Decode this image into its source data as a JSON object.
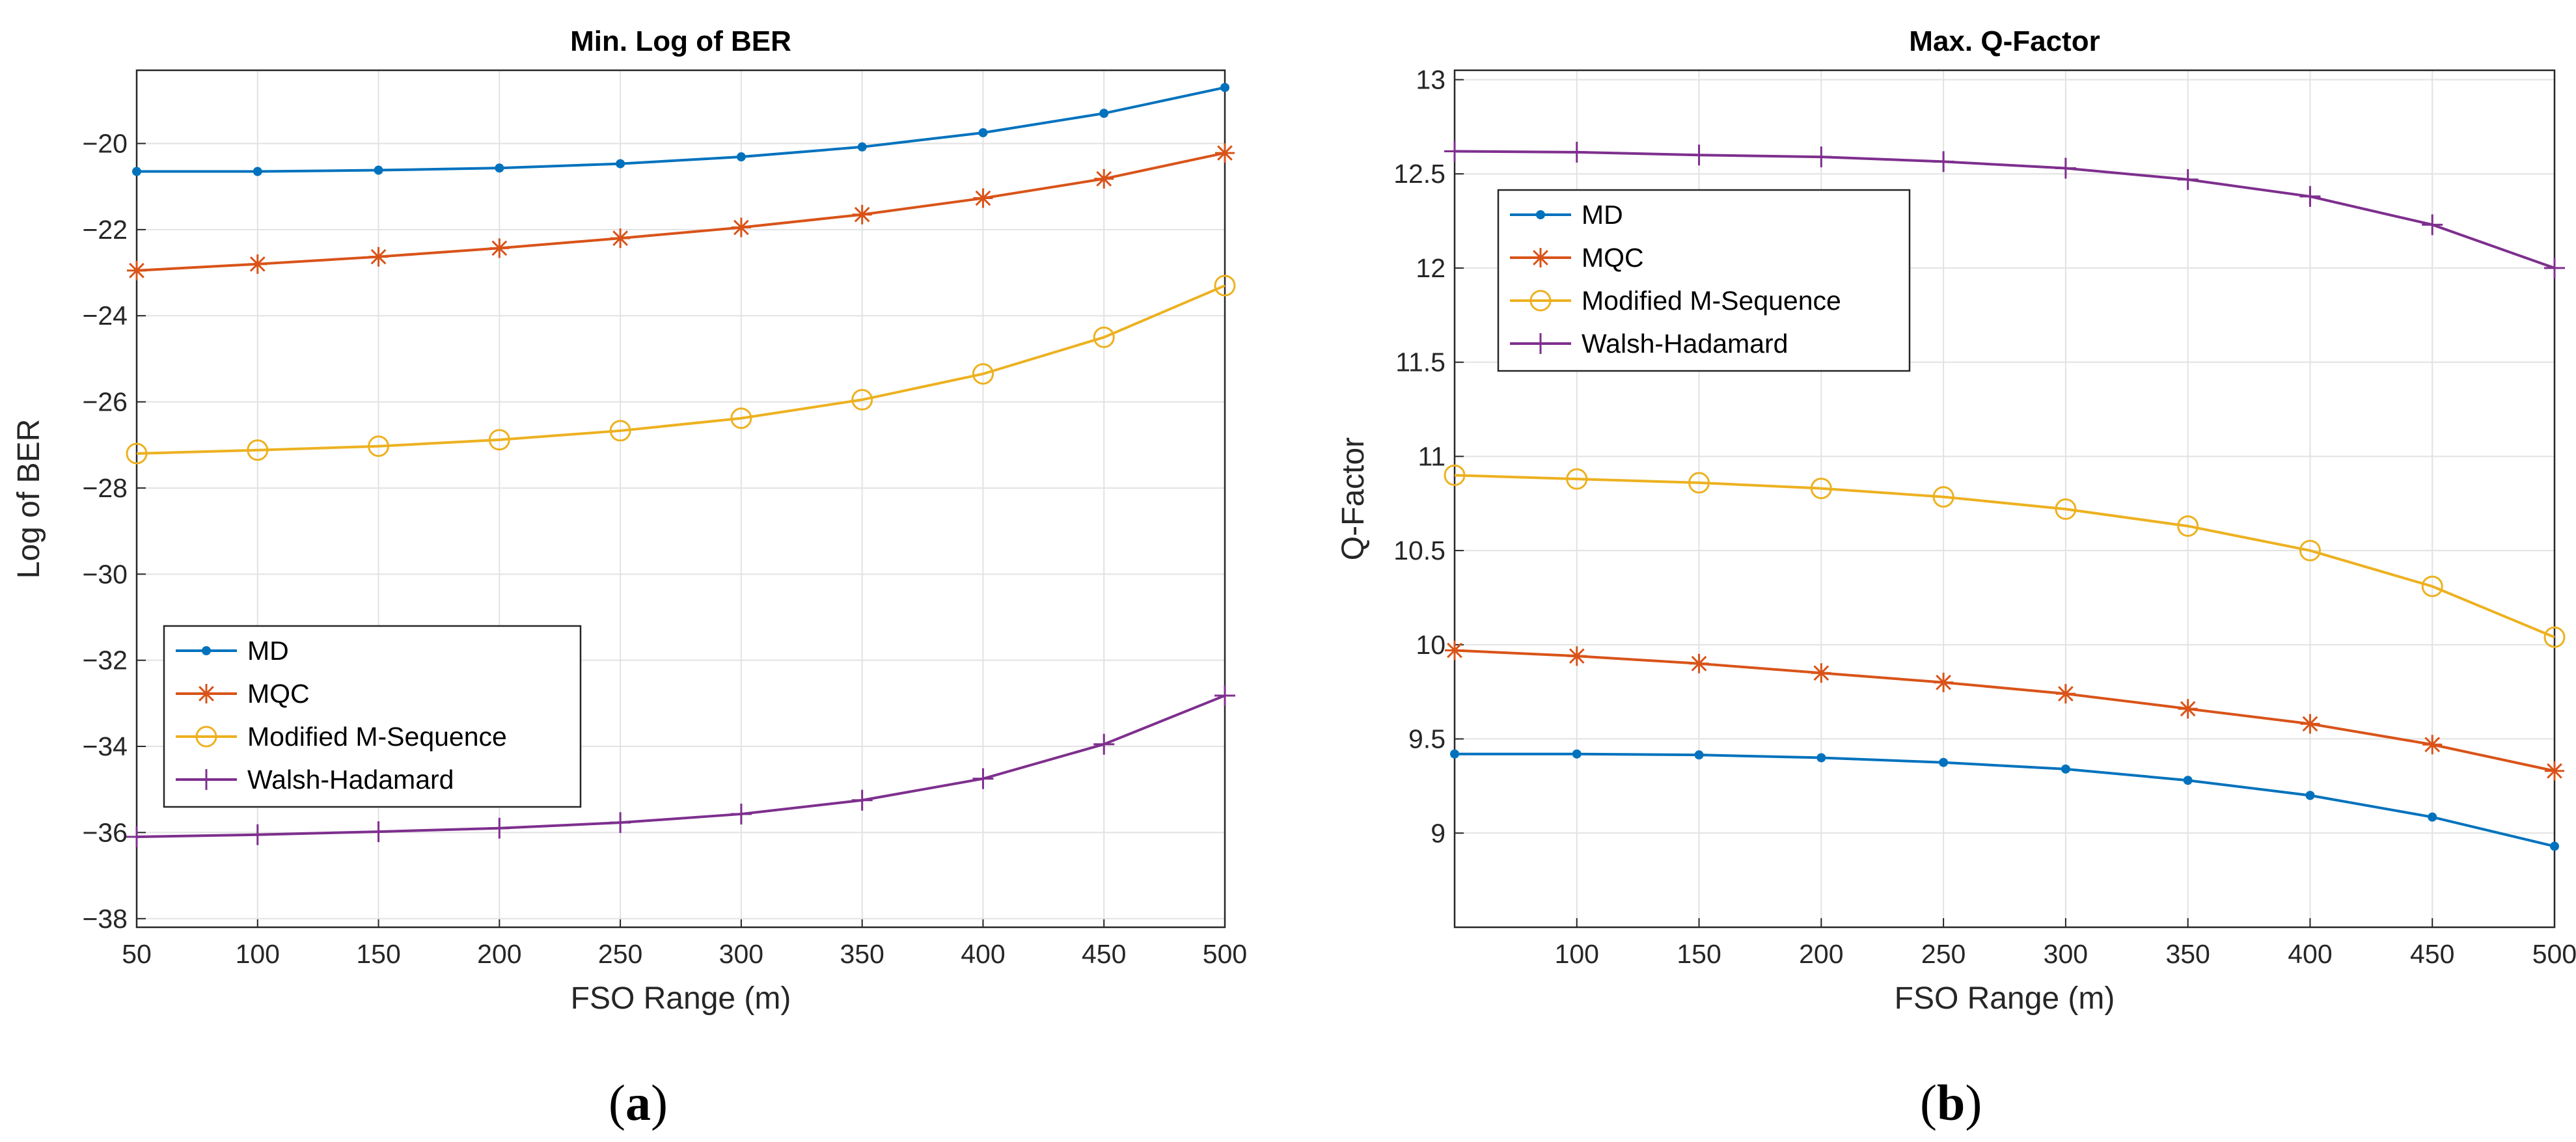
{
  "charts": [
    {
      "caption_open": "(",
      "caption_letter": "a",
      "caption_close": ")",
      "chart_data": {
        "type": "line",
        "title": "Min. Log of BER",
        "xlabel": "FSO Range (m)",
        "ylabel": "Log of BER",
        "x": [
          50,
          100,
          150,
          200,
          250,
          300,
          350,
          400,
          450,
          500
        ],
        "xlim": [
          50,
          500
        ],
        "ylim": [
          -38.2,
          -18.3
        ],
        "xticks": [
          50,
          100,
          150,
          200,
          250,
          300,
          350,
          400,
          450,
          500
        ],
        "yticks": [
          -38,
          -36,
          -34,
          -32,
          -30,
          -28,
          -26,
          -24,
          -22,
          -20
        ],
        "grid": true,
        "legend_position": "lower-left",
        "series": [
          {
            "name": "MD",
            "color": "#0072BD",
            "marker": "dot",
            "values": [
              -20.65,
              -20.65,
              -20.62,
              -20.57,
              -20.47,
              -20.31,
              -20.08,
              -19.75,
              -19.3,
              -18.7
            ]
          },
          {
            "name": "MQC",
            "color": "#D95319",
            "marker": "star",
            "values": [
              -22.95,
              -22.8,
              -22.63,
              -22.43,
              -22.2,
              -21.95,
              -21.65,
              -21.27,
              -20.82,
              -20.22
            ]
          },
          {
            "name": "Modified M-Sequence",
            "color": "#EDB120",
            "marker": "circle",
            "values": [
              -27.2,
              -27.12,
              -27.03,
              -26.88,
              -26.67,
              -26.38,
              -25.95,
              -25.35,
              -24.5,
              -23.3
            ]
          },
          {
            "name": "Walsh-Hadamard",
            "color": "#7E2F8E",
            "marker": "plus",
            "values": [
              -36.1,
              -36.05,
              -35.98,
              -35.9,
              -35.77,
              -35.57,
              -35.25,
              -34.75,
              -33.95,
              -32.82
            ]
          }
        ]
      }
    },
    {
      "caption_open": "(",
      "caption_letter": "b",
      "caption_close": ")",
      "chart_data": {
        "type": "line",
        "title": "Max. Q-Factor",
        "xlabel": "FSO Range (m)",
        "ylabel": "Q-Factor",
        "x": [
          50,
          100,
          150,
          200,
          250,
          300,
          350,
          400,
          450,
          500
        ],
        "xlim": [
          50,
          500
        ],
        "ylim": [
          8.5,
          13.05
        ],
        "xticks": [
          100,
          150,
          200,
          250,
          300,
          350,
          400,
          450,
          500
        ],
        "yticks": [
          9,
          9.5,
          10,
          10.5,
          11,
          11.5,
          12,
          12.5,
          13
        ],
        "grid": true,
        "legend_position": "top-left",
        "series": [
          {
            "name": "MD",
            "color": "#0072BD",
            "marker": "dot",
            "values": [
              9.42,
              9.42,
              9.415,
              9.4,
              9.375,
              9.34,
              9.28,
              9.2,
              9.085,
              8.93
            ]
          },
          {
            "name": "MQC",
            "color": "#D95319",
            "marker": "star",
            "values": [
              9.97,
              9.94,
              9.9,
              9.85,
              9.8,
              9.74,
              9.66,
              9.58,
              9.47,
              9.33
            ]
          },
          {
            "name": "Modified M-Sequence",
            "color": "#EDB120",
            "marker": "circle",
            "values": [
              10.9,
              10.88,
              10.86,
              10.83,
              10.785,
              10.72,
              10.63,
              10.5,
              10.31,
              10.04
            ]
          },
          {
            "name": "Walsh-Hadamard",
            "color": "#7E2F8E",
            "marker": "plus",
            "values": [
              12.62,
              12.615,
              12.6,
              12.59,
              12.565,
              12.53,
              12.47,
              12.38,
              12.23,
              12.0
            ]
          }
        ]
      }
    }
  ]
}
